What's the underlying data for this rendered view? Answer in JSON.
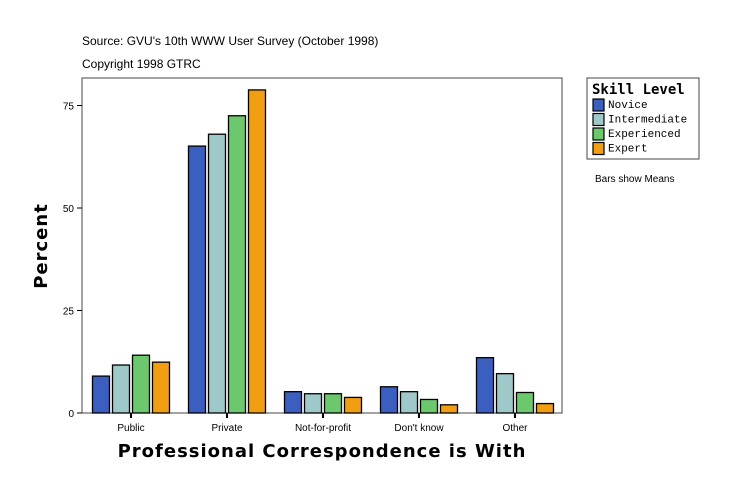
{
  "header": {
    "source": "Source: GVU's 10th WWW User Survey (October 1998)",
    "copyright": "Copyright 1998 GTRC"
  },
  "note": "Bars show Means",
  "chart_data": {
    "type": "bar",
    "xlabel": "Professional Correspondence is With",
    "ylabel": "Percent",
    "ylim": [
      0,
      82
    ],
    "yticks": [
      0,
      25,
      50,
      75
    ],
    "grid": false,
    "legend_title": "Skill Level",
    "legend_placement": "right",
    "categories": [
      "Public",
      "Private",
      "Not-for-profit",
      "Don't know",
      "Other"
    ],
    "series": [
      {
        "name": "Novice",
        "color": "#3a5fbf",
        "values": [
          9.0,
          65.1,
          5.2,
          6.4,
          13.5
        ]
      },
      {
        "name": "Intermediate",
        "color": "#9fc8c8",
        "values": [
          11.7,
          68.0,
          4.7,
          5.2,
          9.6
        ]
      },
      {
        "name": "Experienced",
        "color": "#6cc86c",
        "values": [
          14.1,
          72.5,
          4.7,
          3.3,
          5.0
        ]
      },
      {
        "name": "Expert",
        "color": "#f29e12",
        "values": [
          12.4,
          78.8,
          3.8,
          2.0,
          2.3
        ]
      }
    ]
  }
}
